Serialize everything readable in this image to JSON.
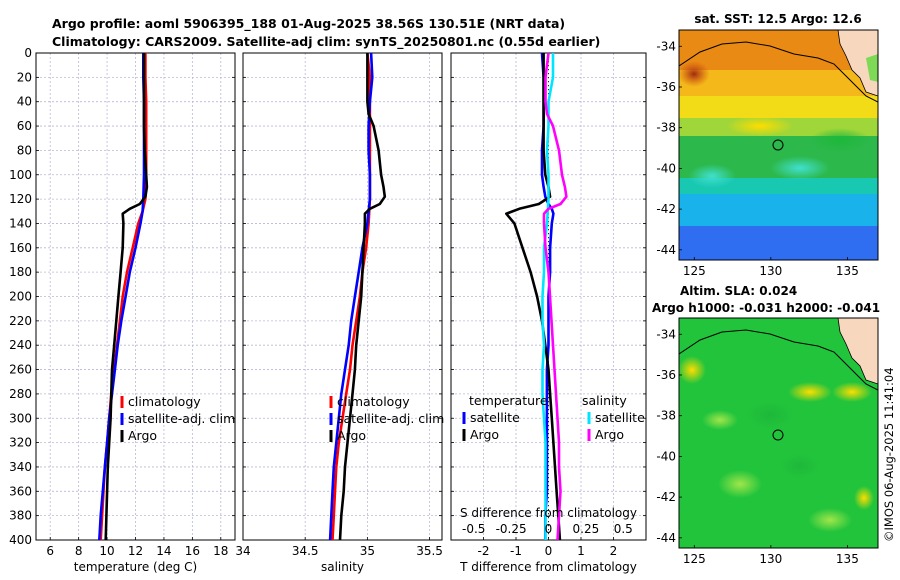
{
  "title_line1": "Argo profile: aoml 5906395_188 01-Aug-2025 38.56S 130.51E (NRT data)",
  "title_line2": "Climatology: CARS2009. Satellite-adj clim: synTS_20250801.nc (0.55d earlier)",
  "colors": {
    "red": "#ff0000",
    "blue": "#0000ff",
    "black": "#000000",
    "cyan": "#00e5ff",
    "magenta": "#ff00ff",
    "grid": "#b8b8d8"
  },
  "chart_data": [
    {
      "id": "temperature",
      "type": "line",
      "xlabel": "temperature (deg C)",
      "xlim": [
        5,
        19
      ],
      "xticks": [
        6,
        8,
        10,
        12,
        14,
        16,
        18
      ],
      "ylim": [
        0,
        400
      ],
      "yticks": [
        0,
        20,
        40,
        60,
        80,
        100,
        120,
        140,
        160,
        180,
        200,
        220,
        240,
        260,
        280,
        300,
        320,
        340,
        360,
        380,
        400
      ],
      "legend": [
        "climatology",
        "satellite-adj. clim",
        "Argo"
      ],
      "series": [
        {
          "name": "climatology",
          "color": "red",
          "depth": [
            0,
            20,
            40,
            60,
            80,
            100,
            120,
            130,
            140,
            160,
            180,
            200,
            220,
            240,
            260,
            280,
            300,
            320,
            340,
            360,
            380,
            400
          ],
          "values": [
            12.7,
            12.7,
            12.75,
            12.75,
            12.75,
            12.75,
            12.7,
            12.5,
            12.2,
            11.8,
            11.4,
            11.1,
            10.9,
            10.7,
            10.5,
            10.3,
            10.15,
            10.0,
            9.85,
            9.75,
            9.65,
            9.55
          ]
        },
        {
          "name": "satellite-adj. clim",
          "color": "blue",
          "depth": [
            0,
            20,
            40,
            60,
            80,
            100,
            120,
            130,
            140,
            160,
            180,
            200,
            220,
            240,
            260,
            280,
            300,
            320,
            340,
            360,
            380,
            400
          ],
          "values": [
            12.55,
            12.55,
            12.6,
            12.6,
            12.6,
            12.6,
            12.55,
            12.5,
            12.35,
            12.0,
            11.6,
            11.3,
            11.0,
            10.75,
            10.55,
            10.35,
            10.15,
            10.0,
            9.85,
            9.7,
            9.55,
            9.45
          ]
        },
        {
          "name": "Argo",
          "color": "black",
          "depth": [
            0,
            20,
            40,
            60,
            80,
            90,
            100,
            110,
            118,
            124,
            128,
            132,
            140,
            160,
            180,
            200,
            220,
            240,
            260,
            280,
            300,
            320,
            340,
            360,
            380,
            400
          ],
          "values": [
            12.6,
            12.6,
            12.6,
            12.6,
            12.65,
            12.7,
            12.75,
            12.8,
            12.7,
            12.3,
            11.6,
            11.1,
            11.15,
            11.1,
            10.95,
            10.8,
            10.65,
            10.5,
            10.35,
            10.3,
            10.25,
            10.15,
            10.05,
            10.0,
            9.95,
            9.9
          ]
        }
      ]
    },
    {
      "id": "salinity",
      "type": "line",
      "xlabel": "salinity",
      "xlim": [
        34,
        35.6
      ],
      "xticks": [
        34,
        34.5,
        35,
        35.5
      ],
      "xticklabels": [
        "34",
        "34.5",
        "35",
        "35.5"
      ],
      "ylim": [
        0,
        400
      ],
      "legend": [
        "climatology",
        "satellite-adj. clim",
        "Argo"
      ],
      "series": [
        {
          "name": "climatology",
          "color": "red",
          "depth": [
            0,
            20,
            40,
            60,
            80,
            100,
            120,
            140,
            160,
            180,
            200,
            220,
            240,
            260,
            280,
            300,
            320,
            340,
            360,
            380,
            400
          ],
          "values": [
            35.0,
            35.02,
            35.02,
            35.02,
            35.02,
            35.02,
            35.02,
            35.01,
            34.99,
            34.96,
            34.94,
            34.91,
            34.88,
            34.86,
            34.83,
            34.8,
            34.77,
            34.75,
            34.74,
            34.73,
            34.72
          ]
        },
        {
          "name": "satellite-adj. clim",
          "color": "blue",
          "depth": [
            0,
            20,
            40,
            60,
            80,
            100,
            120,
            140,
            160,
            180,
            200,
            220,
            240,
            260,
            280,
            300,
            320,
            340,
            360,
            380,
            400
          ],
          "values": [
            35.03,
            35.04,
            35.02,
            35.01,
            35.01,
            35.02,
            35.02,
            35.0,
            34.96,
            34.93,
            34.9,
            34.87,
            34.85,
            34.82,
            34.79,
            34.77,
            34.75,
            34.73,
            34.72,
            34.71,
            34.7
          ]
        },
        {
          "name": "Argo",
          "color": "black",
          "depth": [
            0,
            20,
            40,
            50,
            60,
            80,
            100,
            110,
            118,
            124,
            128,
            132,
            140,
            160,
            180,
            200,
            220,
            240,
            260,
            280,
            300,
            320,
            340,
            360,
            380,
            400
          ],
          "values": [
            35.0,
            35.0,
            35.0,
            35.01,
            35.05,
            35.09,
            35.11,
            35.13,
            35.14,
            35.1,
            35.02,
            34.98,
            34.98,
            34.97,
            34.96,
            34.95,
            34.93,
            34.91,
            34.9,
            34.88,
            34.86,
            34.84,
            34.82,
            34.81,
            34.79,
            34.78
          ]
        }
      ]
    },
    {
      "id": "difference",
      "type": "line",
      "xlabel": "T difference from climatology",
      "xlabel_top": "S difference from climatology",
      "xlim": [
        -3,
        3
      ],
      "xticks": [
        -2,
        -1,
        0,
        1,
        2
      ],
      "xticklabels": [
        "-2",
        "-1",
        "0",
        "1",
        "2"
      ],
      "s_ticklabels": [
        "-0.5",
        "-0.25",
        "0",
        "0.25",
        "0.5"
      ],
      "ylim": [
        0,
        400
      ],
      "legend_left_title": "temperature",
      "legend_left": [
        "satellite",
        "Argo"
      ],
      "legend_right_title": "salinity",
      "legend_right": [
        "satellite",
        "Argo"
      ],
      "series": [
        {
          "name": "T satellite",
          "color": "blue",
          "depth": [
            0,
            20,
            40,
            60,
            80,
            100,
            110,
            118,
            124,
            128,
            132,
            140,
            160,
            180,
            200,
            220,
            240,
            260,
            280,
            300,
            320,
            340,
            360,
            380,
            400
          ],
          "values": [
            -0.2,
            -0.15,
            -0.15,
            -0.15,
            -0.2,
            -0.2,
            -0.15,
            -0.1,
            0.0,
            0.1,
            0.15,
            0.1,
            0.05,
            0.05,
            0.0,
            0.0,
            0.0,
            -0.05,
            -0.05,
            -0.05,
            -0.05,
            -0.05,
            -0.05,
            -0.1,
            -0.1
          ]
        },
        {
          "name": "T Argo",
          "color": "black",
          "depth": [
            0,
            20,
            40,
            60,
            80,
            100,
            110,
            118,
            124,
            128,
            132,
            140,
            160,
            180,
            200,
            220,
            240,
            260,
            280,
            300,
            320,
            340,
            360,
            380,
            400
          ],
          "values": [
            -0.15,
            -0.15,
            -0.15,
            -0.15,
            -0.15,
            -0.1,
            0.0,
            0.05,
            -0.3,
            -0.9,
            -1.3,
            -1.05,
            -0.8,
            -0.55,
            -0.35,
            -0.2,
            -0.1,
            0.0,
            0.05,
            0.1,
            0.15,
            0.2,
            0.25,
            0.3,
            0.35
          ]
        },
        {
          "name": "S satellite",
          "color": "cyan",
          "depth": [
            0,
            20,
            40,
            60,
            80,
            100,
            120,
            140,
            160,
            180,
            200,
            220,
            240,
            260,
            280,
            300,
            320,
            340,
            360,
            380,
            400
          ],
          "values": [
            0.03,
            0.03,
            0.0,
            0.0,
            -0.01,
            0.0,
            0.0,
            -0.01,
            -0.03,
            -0.03,
            -0.04,
            -0.04,
            -0.03,
            -0.04,
            -0.04,
            -0.03,
            -0.02,
            -0.02,
            -0.02,
            -0.02,
            -0.02
          ]
        },
        {
          "name": "S Argo",
          "color": "magenta",
          "depth": [
            0,
            20,
            40,
            50,
            60,
            80,
            100,
            110,
            118,
            124,
            128,
            132,
            140,
            160,
            180,
            200,
            220,
            240,
            260,
            280,
            300,
            320,
            340,
            360,
            380,
            400
          ],
          "values": [
            0.0,
            -0.02,
            -0.02,
            -0.01,
            0.03,
            0.07,
            0.09,
            0.11,
            0.12,
            0.08,
            0.0,
            -0.03,
            -0.03,
            -0.02,
            0.0,
            0.01,
            0.02,
            0.03,
            0.04,
            0.05,
            0.06,
            0.07,
            0.07,
            0.08,
            0.07,
            0.06
          ]
        }
      ]
    },
    {
      "id": "sst_map",
      "type": "heatmap",
      "title": "sat. SST: 12.5 Argo: 12.6",
      "xticks": [
        125,
        130,
        135
      ],
      "yticks": [
        -34,
        -36,
        -38,
        -40,
        -42,
        -44
      ],
      "xlim": [
        124,
        137
      ],
      "ylim": [
        -44.5,
        -33.2
      ],
      "float_position": [
        130.51,
        -38.56
      ]
    },
    {
      "id": "sla_map",
      "type": "heatmap",
      "title": "Altim. SLA: 0.024",
      "subtitle": "Argo h1000: -0.031 h2000: -0.041",
      "xticks": [
        125,
        130,
        135
      ],
      "yticks": [
        -34,
        -36,
        -38,
        -40,
        -42,
        -44
      ],
      "xlim": [
        124,
        137
      ],
      "ylim": [
        -44.5,
        -33.2
      ],
      "float_position": [
        130.51,
        -38.56
      ]
    }
  ],
  "credit": "©IMOS 06-Aug-2025 11:41:04"
}
